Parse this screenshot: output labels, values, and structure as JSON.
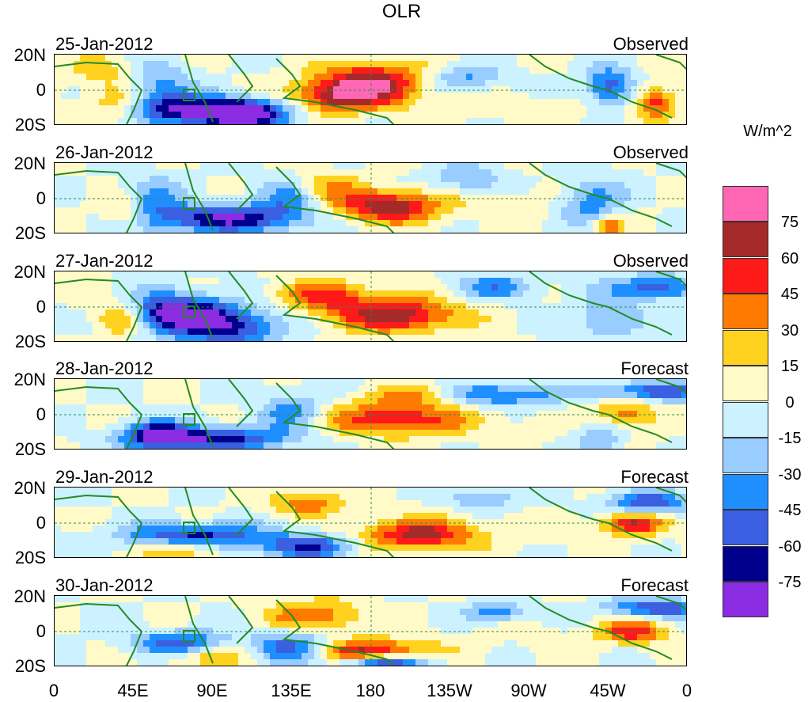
{
  "title": "OLR",
  "units": "W/m^2",
  "panels": [
    {
      "date": "25-Jan-2012",
      "type": "Observed"
    },
    {
      "date": "26-Jan-2012",
      "type": "Observed"
    },
    {
      "date": "27-Jan-2012",
      "type": "Observed"
    },
    {
      "date": "28-Jan-2012",
      "type": "Forecast"
    },
    {
      "date": "29-Jan-2012",
      "type": "Forecast"
    },
    {
      "date": "30-Jan-2012",
      "type": "Forecast"
    }
  ],
  "lat_labels": [
    "20N",
    "0",
    "20S"
  ],
  "lon_labels": [
    "0",
    "45E",
    "90E",
    "135E",
    "180",
    "135W",
    "90W",
    "45W",
    "0"
  ],
  "colorbar": {
    "labels": [
      "75",
      "60",
      "45",
      "30",
      "15",
      "0",
      "-15",
      "-30",
      "-45",
      "-60",
      "-75"
    ],
    "colors": [
      "#ff66b3",
      "#a52a2a",
      "#ff1a1a",
      "#ff7a00",
      "#ffd21f",
      "#fffac8",
      "#ccf2ff",
      "#99ccff",
      "#1f8fff",
      "#3a5fe0",
      "#00008c",
      "#8b2be2"
    ]
  },
  "map_colors": {
    "land": "#228b22",
    "dashed": "#2e8b57"
  }
}
